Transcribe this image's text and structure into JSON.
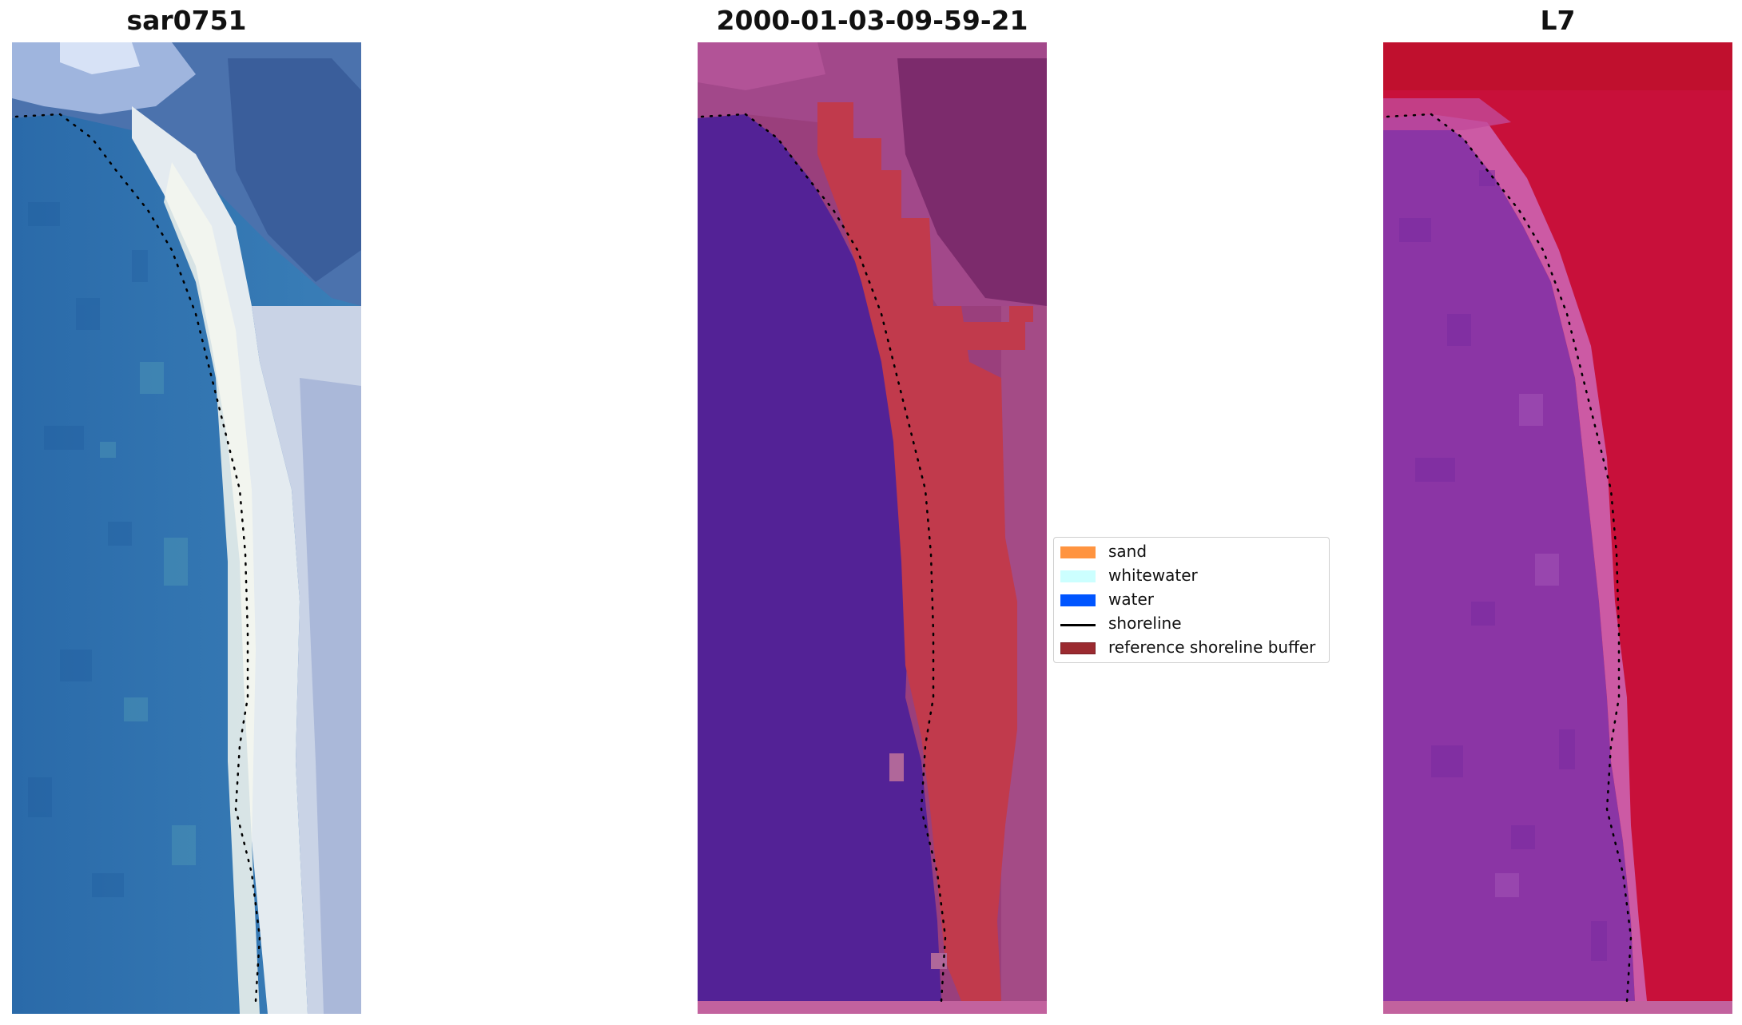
{
  "panels": [
    {
      "title": "sar0751"
    },
    {
      "title": "2000-01-03-09-59-21"
    },
    {
      "title": "L7"
    }
  ],
  "legend": {
    "items": [
      {
        "label": "sand",
        "color": "#ff9440"
      },
      {
        "label": "whitewater",
        "color": "#ccffff"
      },
      {
        "label": "water",
        "color": "#0055ff"
      },
      {
        "label": "shoreline",
        "color": "#000000"
      },
      {
        "label": "reference shoreline buffer",
        "color": "#9b2a30"
      }
    ]
  },
  "colors": {
    "classified_water": "#532296",
    "buffer": "#c13a4c",
    "bottom_strip": "#c2629e",
    "rgb_water": "#2e6fae",
    "rgb_sand": "#e8ecef",
    "false_color_water": "#8b35a5",
    "false_color_land": "#c8103a"
  }
}
